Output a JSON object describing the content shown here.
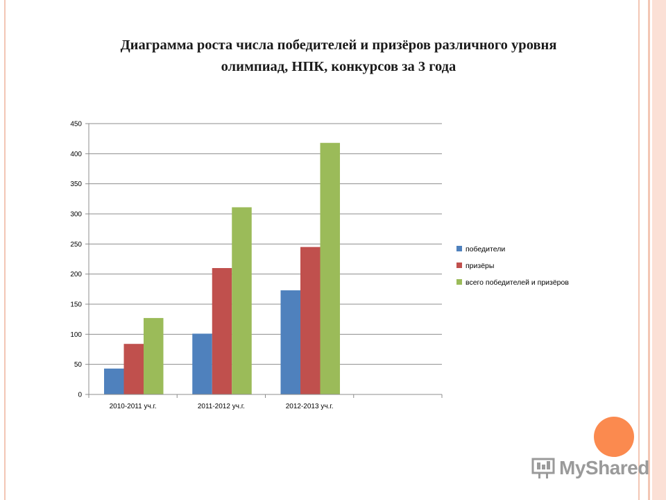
{
  "slide": {
    "title_line1": "Диаграмма роста числа победителей и призёров различного уровня",
    "title_line2": "олимпиад, НПК, конкурсов  за 3 года"
  },
  "watermark": {
    "text": "MyShared"
  },
  "colors": {
    "accent_circle": "#fb8a4f",
    "border": "#f3c6b4"
  },
  "chart_data": {
    "type": "bar",
    "categories": [
      "2010-2011 уч.г.",
      "2011-2012 уч.г.",
      "2012-2013 уч.г.",
      ""
    ],
    "series": [
      {
        "name": "победители",
        "color": "#4f81bd",
        "values": [
          43,
          101,
          173,
          null
        ]
      },
      {
        "name": "призёры",
        "color": "#c0504d",
        "values": [
          84,
          210,
          245,
          null
        ]
      },
      {
        "name": "всего победителей и призёров",
        "color": "#9bbb59",
        "values": [
          127,
          311,
          418,
          null
        ]
      }
    ],
    "yticks": [
      0,
      50,
      100,
      150,
      200,
      250,
      300,
      350,
      400,
      450
    ],
    "ylim": [
      0,
      450
    ],
    "grid": true,
    "legend": "right"
  }
}
